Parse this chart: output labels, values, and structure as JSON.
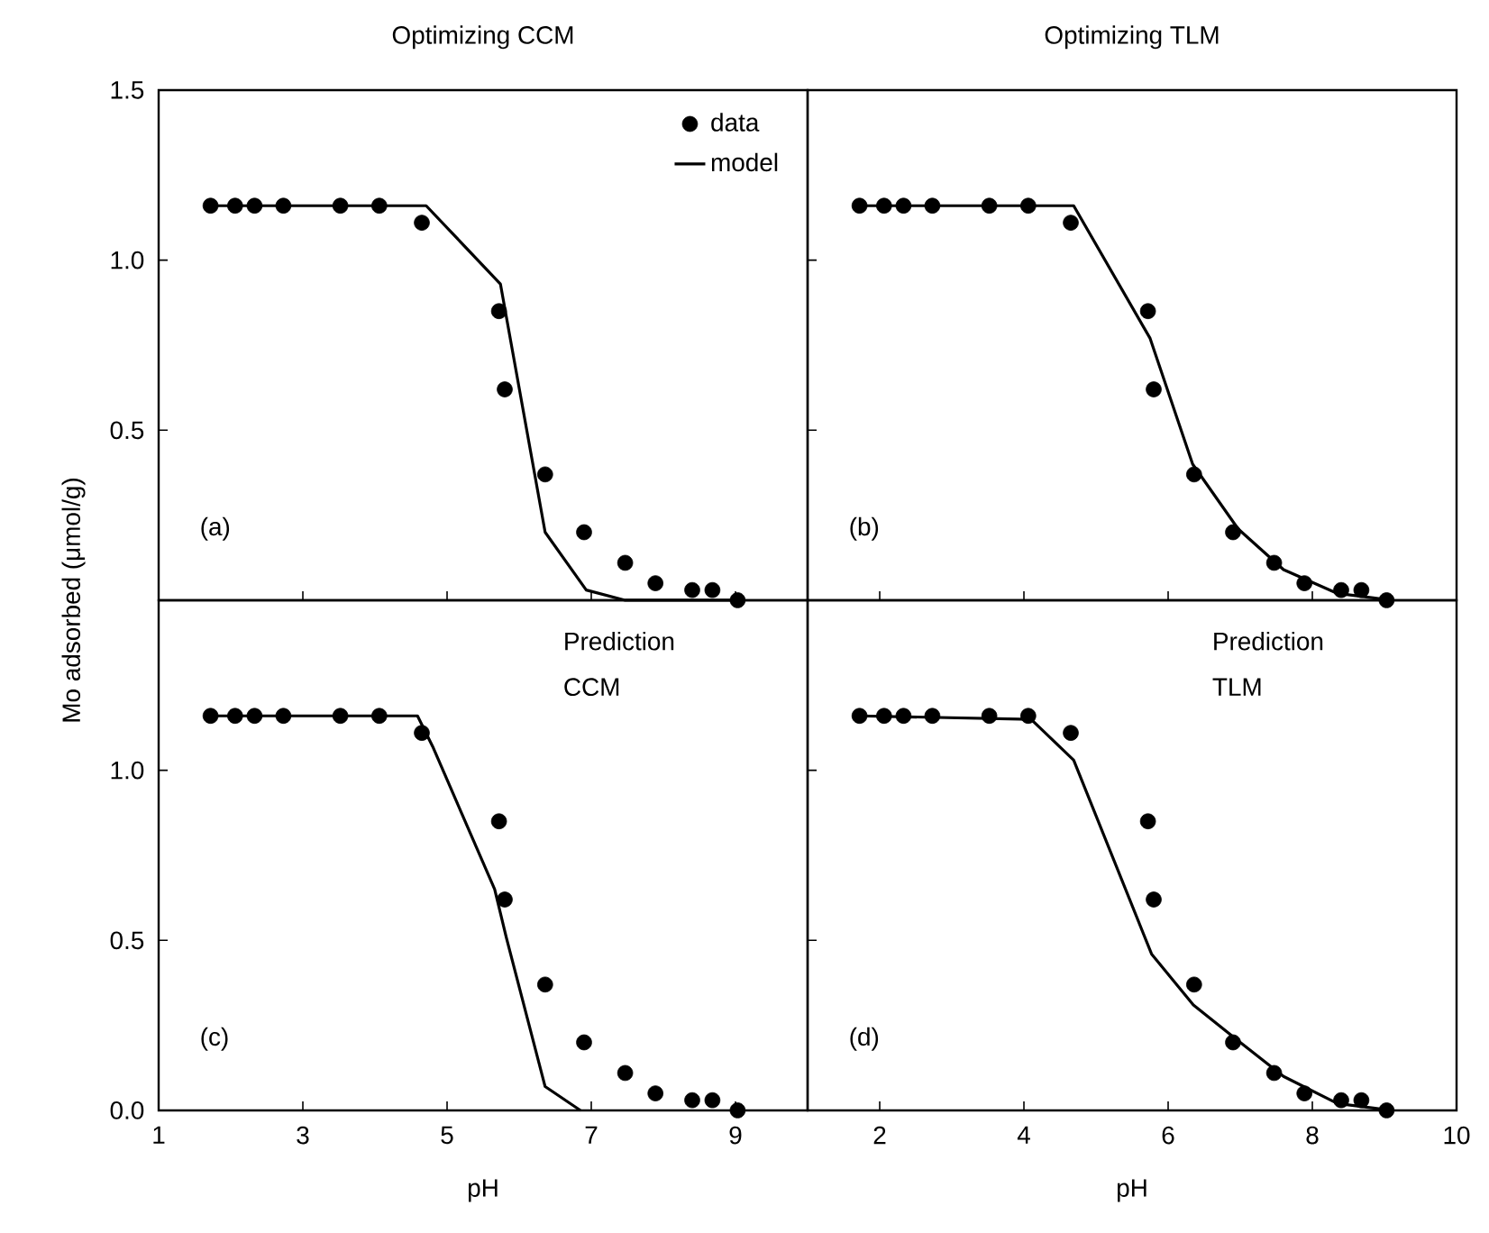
{
  "chart_data": [
    {
      "type": "line",
      "title": "Optimizing CCM",
      "xlim": [
        1,
        10
      ],
      "ylim": [
        0,
        1.5
      ],
      "xticks": [
        1,
        3,
        5,
        7,
        9
      ],
      "yticks": [
        {
          "value": 0.5,
          "label": "0.5"
        },
        {
          "value": 1.0,
          "label": "1.0"
        },
        {
          "value": 1.5,
          "label": "1.5"
        }
      ],
      "tick_labels": "y",
      "legend": "top right",
      "annotations": [
        "(a)"
      ],
      "series": [
        {
          "name": "data",
          "type": "scatter",
          "marker": "circle",
          "color": "#000000",
          "x": [
            1.72,
            2.06,
            2.33,
            2.73,
            3.52,
            4.06,
            4.65,
            5.72,
            5.8,
            6.36,
            6.9,
            7.47,
            7.89,
            8.4,
            8.68,
            9.03
          ],
          "values": [
            1.16,
            1.16,
            1.16,
            1.16,
            1.16,
            1.16,
            1.11,
            0.85,
            0.62,
            0.37,
            0.2,
            0.11,
            0.05,
            0.03,
            0.03,
            0.0
          ]
        },
        {
          "name": "model",
          "line_style": "solid",
          "color": "#000000",
          "x": [
            1.72,
            4.71,
            5.74,
            6.36,
            6.93,
            7.47,
            9.03
          ],
          "values": [
            1.16,
            1.16,
            0.93,
            0.2,
            0.03,
            0,
            0
          ]
        }
      ]
    },
    {
      "type": "line",
      "title": "Optimizing TLM",
      "xlim": [
        1,
        10
      ],
      "ylim": [
        0,
        1.5
      ],
      "xticks": [
        2,
        4,
        6,
        8,
        10
      ],
      "yticks": [
        0.5,
        1.0,
        1.5
      ],
      "tick_labels": false,
      "annotations": [
        "(b)"
      ],
      "series": [
        {
          "type": "scatter",
          "marker": "circle",
          "color": "#000000",
          "x": [
            1.72,
            2.06,
            2.33,
            2.73,
            3.52,
            4.06,
            4.65,
            5.72,
            5.8,
            6.36,
            6.9,
            7.47,
            7.89,
            8.4,
            8.68,
            9.03
          ],
          "values": [
            1.16,
            1.16,
            1.16,
            1.16,
            1.16,
            1.16,
            1.11,
            0.85,
            0.62,
            0.37,
            0.2,
            0.11,
            0.05,
            0.03,
            0.03,
            0.0
          ]
        },
        {
          "line_style": "solid",
          "color": "#000000",
          "x": [
            1.72,
            4.69,
            5.75,
            6.34,
            6.97,
            7.6,
            8.35,
            9.1
          ],
          "values": [
            1.16,
            1.16,
            0.77,
            0.4,
            0.21,
            0.09,
            0.02,
            0
          ]
        }
      ]
    },
    {
      "type": "line",
      "xlabel": "pH",
      "ylabel": "Mo adsorbed (μmol/g)",
      "xlim": [
        1,
        10
      ],
      "ylim": [
        0,
        1.5
      ],
      "xticks": [
        1,
        3,
        5,
        7,
        9
      ],
      "yticks": [
        {
          "value": 0.0,
          "label": "0.0"
        },
        {
          "value": 0.5,
          "label": "0.5"
        },
        {
          "value": 1.0,
          "label": "1.0"
        }
      ],
      "annotations": [
        "(c)",
        "Prediction",
        "CCM"
      ],
      "series": [
        {
          "type": "scatter",
          "marker": "circle",
          "color": "#000000",
          "x": [
            1.72,
            2.06,
            2.33,
            2.73,
            3.52,
            4.06,
            4.65,
            5.72,
            5.8,
            6.36,
            6.9,
            7.47,
            7.89,
            8.4,
            8.68,
            9.03
          ],
          "values": [
            1.16,
            1.16,
            1.16,
            1.16,
            1.16,
            1.16,
            1.11,
            0.85,
            0.62,
            0.37,
            0.2,
            0.11,
            0.05,
            0.03,
            0.03,
            0.0
          ]
        },
        {
          "line_style": "solid",
          "color": "#000000",
          "x": [
            1.72,
            4.59,
            4.8,
            5.66,
            5.82,
            6.36,
            6.85
          ],
          "values": [
            1.16,
            1.16,
            1.07,
            0.65,
            0.51,
            0.07,
            0
          ]
        }
      ]
    },
    {
      "type": "line",
      "xlabel": "pH",
      "xlim": [
        1,
        10
      ],
      "ylim": [
        0,
        1.5
      ],
      "xticks": [
        2,
        4,
        6,
        8,
        10
      ],
      "yticks": [
        0.0,
        0.5,
        1.0
      ],
      "tick_labels": "x",
      "annotations": [
        "(d)",
        "Prediction",
        "TLM"
      ],
      "series": [
        {
          "type": "scatter",
          "marker": "circle",
          "color": "#000000",
          "x": [
            1.72,
            2.06,
            2.33,
            2.73,
            3.52,
            4.06,
            4.65,
            5.72,
            5.8,
            6.36,
            6.9,
            7.47,
            7.89,
            8.4,
            8.68,
            9.03
          ],
          "values": [
            1.16,
            1.16,
            1.16,
            1.16,
            1.16,
            1.16,
            1.11,
            0.85,
            0.62,
            0.37,
            0.2,
            0.11,
            0.05,
            0.03,
            0.03,
            0.0
          ]
        },
        {
          "line_style": "solid",
          "color": "#000000",
          "x": [
            1.72,
            4.1,
            4.69,
            5.77,
            6.35,
            6.94,
            7.6,
            8.35,
            9.1
          ],
          "values": [
            1.16,
            1.15,
            1.03,
            0.46,
            0.31,
            0.21,
            0.1,
            0.02,
            0
          ]
        }
      ]
    }
  ]
}
